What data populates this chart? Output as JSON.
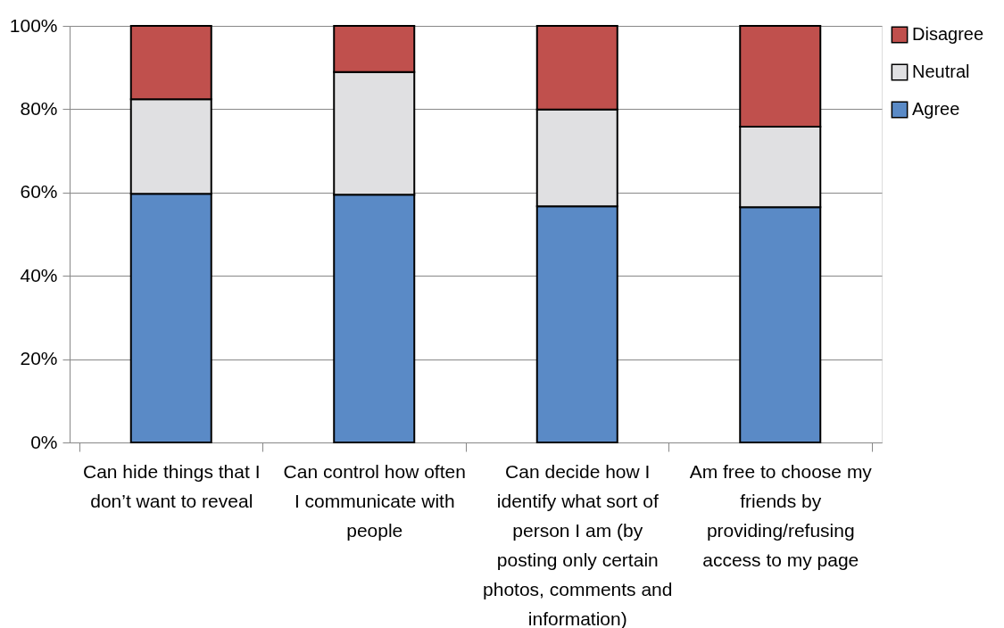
{
  "chart_data": {
    "type": "bar",
    "stacked": true,
    "categories": [
      "Can hide things that I don’t want to reveal",
      "Can control how often I communicate with people",
      "Can decide how I identify what sort of person I am (by posting only certain photos, comments and information)",
      "Am free to choose my friends by providing/refusing access to my page"
    ],
    "series": [
      {
        "name": "Agree",
        "color": "#5a8ac6",
        "values": [
          59.7,
          59.5,
          56.7,
          56.5
        ]
      },
      {
        "name": "Neutral",
        "color": "#e0e0e2",
        "values": [
          22.7,
          29.4,
          23.2,
          19.3
        ]
      },
      {
        "name": "Disagree",
        "color": "#c0504d",
        "values": [
          17.6,
          11.1,
          20.1,
          24.2
        ]
      }
    ],
    "ylim": [
      0,
      100
    ],
    "yticks": [
      {
        "value": 0,
        "label": "0%"
      },
      {
        "value": 20,
        "label": "20%"
      },
      {
        "value": 40,
        "label": "40%"
      },
      {
        "value": 60,
        "label": "60%"
      },
      {
        "value": 80,
        "label": "80%"
      },
      {
        "value": 100,
        "label": "100%"
      }
    ],
    "grid": "y",
    "legend": "right"
  }
}
